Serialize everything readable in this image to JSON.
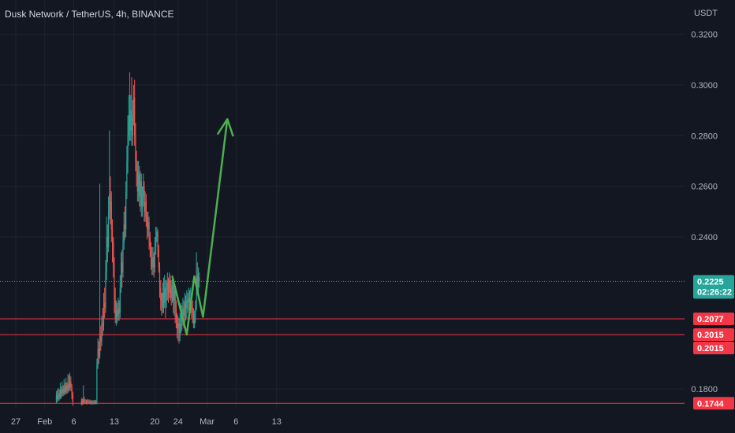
{
  "title": "Dusk Network / TetherUS, 4h, BINANCE",
  "chart_data": {
    "type": "candlestick",
    "y_unit": "USDT",
    "ylim": [
      0.172,
      0.3335
    ],
    "ytick_labels": [
      "0.3200",
      "0.3000",
      "0.2800",
      "0.2600",
      "0.2400",
      "0.1800"
    ],
    "ytick_values": [
      0.32,
      0.3,
      0.28,
      0.26,
      0.24,
      0.18
    ],
    "xtick_labels": [
      "27",
      "Feb",
      "6",
      "13",
      "20",
      "24",
      "Mar",
      "6",
      "13"
    ],
    "xtick_dates": [
      "2023-01-27",
      "2023-02-01",
      "2023-02-06",
      "2023-02-13",
      "2023-02-20",
      "2023-02-24",
      "2023-03-01",
      "2023-03-06",
      "2023-03-13"
    ],
    "colors": {
      "up": "#26a69a",
      "down": "#ef5350",
      "level_line": "#f23645",
      "arrow": "#4caf50",
      "current_price": "#26a69a"
    },
    "current_price": {
      "value": 0.2225,
      "label": "0.2225",
      "countdown": "02:26:22"
    },
    "horizontal_levels": [
      {
        "value": 0.2077,
        "label": "0.2077"
      },
      {
        "value": 0.2015,
        "label": "0.2015"
      },
      {
        "value": 0.1744,
        "label": "0.1744"
      }
    ],
    "extra_price_labels": [
      {
        "value": 0.2015,
        "label": "0.2015"
      }
    ],
    "projection_path": [
      {
        "date": "2023-02-23",
        "price": 0.2245
      },
      {
        "date": "2023-02-25.5",
        "price": 0.2015
      },
      {
        "date": "2023-02-26.8",
        "price": 0.2245
      },
      {
        "date": "2023-02-28.3",
        "price": 0.2085
      },
      {
        "date": "2023-03-04.5",
        "price": 0.2865
      }
    ],
    "candles": [
      [
        "2023-02-03",
        0.1755,
        0.1775,
        0.1792,
        0.1744
      ],
      [
        "2023-02-03.17",
        0.1775,
        0.176,
        0.1798,
        0.1748
      ],
      [
        "2023-02-03.33",
        0.176,
        0.1782,
        0.1805,
        0.1752
      ],
      [
        "2023-02-03.5",
        0.1782,
        0.1768,
        0.18,
        0.1755
      ],
      [
        "2023-02-03.67",
        0.1768,
        0.1795,
        0.1825,
        0.176
      ],
      [
        "2023-02-03.83",
        0.1795,
        0.178,
        0.181,
        0.1762
      ],
      [
        "2023-02-04",
        0.178,
        0.18,
        0.183,
        0.177
      ],
      [
        "2023-02-04.17",
        0.18,
        0.1785,
        0.1815,
        0.1772
      ],
      [
        "2023-02-04.33",
        0.1785,
        0.181,
        0.184,
        0.1775
      ],
      [
        "2023-02-04.5",
        0.181,
        0.179,
        0.1825,
        0.1778
      ],
      [
        "2023-02-04.67",
        0.179,
        0.1815,
        0.1845,
        0.1782
      ],
      [
        "2023-02-04.83",
        0.1815,
        0.1795,
        0.1828,
        0.178
      ],
      [
        "2023-02-05",
        0.1795,
        0.182,
        0.186,
        0.1785
      ],
      [
        "2023-02-05.17",
        0.182,
        0.1805,
        0.1855,
        0.179
      ],
      [
        "2023-02-05.33",
        0.1805,
        0.183,
        0.1865,
        0.1795
      ],
      [
        "2023-02-05.5",
        0.183,
        0.181,
        0.185,
        0.1792
      ],
      [
        "2023-02-05.67",
        0.181,
        0.178,
        0.182,
        0.176
      ],
      [
        "2023-02-05.83",
        0.178,
        0.175,
        0.179,
        0.1735
      ],
      [
        "2023-02-07.33",
        0.174,
        0.1755,
        0.1765,
        0.1735
      ],
      [
        "2023-02-07.5",
        0.1755,
        0.1745,
        0.1762,
        0.1738
      ],
      [
        "2023-02-07.67",
        0.1745,
        0.176,
        0.1815,
        0.174
      ],
      [
        "2023-02-07.83",
        0.176,
        0.1748,
        0.177,
        0.174
      ],
      [
        "2023-02-08",
        0.1748,
        0.175,
        0.176,
        0.1742
      ],
      [
        "2023-02-08.17",
        0.175,
        0.1745,
        0.1758,
        0.174
      ],
      [
        "2023-02-08.33",
        0.1745,
        0.175,
        0.1762,
        0.174
      ],
      [
        "2023-02-08.5",
        0.175,
        0.1746,
        0.1758,
        0.1741
      ],
      [
        "2023-02-08.67",
        0.1746,
        0.1749,
        0.176,
        0.1741
      ],
      [
        "2023-02-08.83",
        0.1749,
        0.1745,
        0.1756,
        0.174
      ],
      [
        "2023-02-09",
        0.1745,
        0.1748,
        0.1758,
        0.174
      ],
      [
        "2023-02-09.17",
        0.1748,
        0.1744,
        0.1755,
        0.1739
      ],
      [
        "2023-02-09.33",
        0.1744,
        0.1747,
        0.1757,
        0.174
      ],
      [
        "2023-02-09.5",
        0.1747,
        0.1745,
        0.1756,
        0.174
      ],
      [
        "2023-02-09.67",
        0.1745,
        0.1748,
        0.1758,
        0.174
      ],
      [
        "2023-02-09.83",
        0.1748,
        0.1746,
        0.1756,
        0.1741
      ],
      [
        "2023-02-10",
        0.1746,
        0.19,
        0.192,
        0.174
      ],
      [
        "2023-02-10.17",
        0.19,
        0.196,
        0.2,
        0.188
      ],
      [
        "2023-02-10.33",
        0.196,
        0.193,
        0.199,
        0.19
      ],
      [
        "2023-02-10.5",
        0.193,
        0.201,
        0.261,
        0.192
      ],
      [
        "2023-02-10.67",
        0.201,
        0.199,
        0.205,
        0.195
      ],
      [
        "2023-02-10.83",
        0.199,
        0.206,
        0.209,
        0.197
      ],
      [
        "2023-02-11",
        0.206,
        0.205,
        0.212,
        0.201
      ],
      [
        "2023-02-11.17",
        0.205,
        0.214,
        0.218,
        0.203
      ],
      [
        "2023-02-11.33",
        0.214,
        0.212,
        0.22,
        0.208
      ],
      [
        "2023-02-11.5",
        0.212,
        0.226,
        0.231,
        0.21
      ],
      [
        "2023-02-11.67",
        0.226,
        0.24,
        0.248,
        0.223
      ],
      [
        "2023-02-11.83",
        0.24,
        0.236,
        0.245,
        0.23
      ],
      [
        "2023-02-12",
        0.236,
        0.25,
        0.256,
        0.234
      ],
      [
        "2023-02-12.17",
        0.25,
        0.257,
        0.282,
        0.247
      ],
      [
        "2023-02-12.33",
        0.257,
        0.254,
        0.264,
        0.245
      ],
      [
        "2023-02-12.5",
        0.254,
        0.243,
        0.258,
        0.238
      ],
      [
        "2023-02-12.67",
        0.243,
        0.238,
        0.247,
        0.23
      ],
      [
        "2023-02-12.83",
        0.238,
        0.228,
        0.24,
        0.224
      ],
      [
        "2023-02-13",
        0.228,
        0.215,
        0.232,
        0.21
      ],
      [
        "2023-02-13.17",
        0.215,
        0.208,
        0.22,
        0.206
      ],
      [
        "2023-02-13.33",
        0.208,
        0.211,
        0.215,
        0.205
      ],
      [
        "2023-02-13.5",
        0.211,
        0.209,
        0.214,
        0.206
      ],
      [
        "2023-02-13.67",
        0.209,
        0.212,
        0.216,
        0.207
      ],
      [
        "2023-02-13.83",
        0.212,
        0.21,
        0.215,
        0.207
      ],
      [
        "2023-02-14",
        0.21,
        0.22,
        0.225,
        0.208
      ],
      [
        "2023-02-14.17",
        0.22,
        0.23,
        0.234,
        0.218
      ],
      [
        "2023-02-14.33",
        0.23,
        0.226,
        0.235,
        0.22
      ],
      [
        "2023-02-14.5",
        0.226,
        0.238,
        0.242,
        0.224
      ],
      [
        "2023-02-14.67",
        0.238,
        0.245,
        0.25,
        0.235
      ],
      [
        "2023-02-14.83",
        0.245,
        0.243,
        0.252,
        0.239
      ],
      [
        "2023-02-15",
        0.243,
        0.258,
        0.262,
        0.24
      ],
      [
        "2023-02-15.17",
        0.258,
        0.27,
        0.276,
        0.255
      ],
      [
        "2023-02-15.33",
        0.27,
        0.28,
        0.288,
        0.265
      ],
      [
        "2023-02-15.5",
        0.28,
        0.288,
        0.296,
        0.276
      ],
      [
        "2023-02-15.67",
        0.288,
        0.282,
        0.305,
        0.278
      ],
      [
        "2023-02-15.83",
        0.282,
        0.29,
        0.296,
        0.278
      ],
      [
        "2023-02-16",
        0.29,
        0.28,
        0.303,
        0.276
      ],
      [
        "2023-02-16.17",
        0.28,
        0.288,
        0.294,
        0.276
      ],
      [
        "2023-02-16.33",
        0.288,
        0.295,
        0.3,
        0.284
      ],
      [
        "2023-02-16.5",
        0.295,
        0.28,
        0.302,
        0.276
      ],
      [
        "2023-02-16.67",
        0.28,
        0.27,
        0.285,
        0.266
      ],
      [
        "2023-02-16.83",
        0.27,
        0.266,
        0.274,
        0.26
      ],
      [
        "2023-02-17",
        0.266,
        0.258,
        0.27,
        0.254
      ],
      [
        "2023-02-17.17",
        0.258,
        0.265,
        0.27,
        0.254
      ],
      [
        "2023-02-17.33",
        0.265,
        0.256,
        0.268,
        0.252
      ],
      [
        "2023-02-17.5",
        0.256,
        0.262,
        0.266,
        0.25
      ],
      [
        "2023-02-17.67",
        0.262,
        0.252,
        0.265,
        0.248
      ],
      [
        "2023-02-17.83",
        0.252,
        0.256,
        0.26,
        0.248
      ],
      [
        "2023-02-18",
        0.256,
        0.26,
        0.265,
        0.252
      ],
      [
        "2023-02-18.17",
        0.26,
        0.25,
        0.262,
        0.246
      ],
      [
        "2023-02-18.33",
        0.25,
        0.254,
        0.258,
        0.246
      ],
      [
        "2023-02-18.5",
        0.254,
        0.248,
        0.257,
        0.244
      ],
      [
        "2023-02-18.67",
        0.248,
        0.243,
        0.25,
        0.239
      ],
      [
        "2023-02-18.83",
        0.243,
        0.246,
        0.25,
        0.24
      ],
      [
        "2023-02-19",
        0.246,
        0.24,
        0.248,
        0.235
      ],
      [
        "2023-02-19.17",
        0.24,
        0.236,
        0.242,
        0.232
      ],
      [
        "2023-02-19.33",
        0.236,
        0.232,
        0.238,
        0.227
      ],
      [
        "2023-02-19.5",
        0.232,
        0.228,
        0.236,
        0.225
      ],
      [
        "2023-02-19.67",
        0.228,
        0.232,
        0.236,
        0.225
      ],
      [
        "2023-02-19.83",
        0.232,
        0.228,
        0.234,
        0.224
      ],
      [
        "2023-02-20",
        0.228,
        0.236,
        0.24,
        0.226
      ],
      [
        "2023-02-20.17",
        0.236,
        0.24,
        0.244,
        0.233
      ],
      [
        "2023-02-20.33",
        0.24,
        0.242,
        0.244,
        0.238
      ],
      [
        "2023-02-20.5",
        0.242,
        0.235,
        0.243,
        0.232
      ],
      [
        "2023-02-20.67",
        0.235,
        0.228,
        0.237,
        0.226
      ],
      [
        "2023-02-20.83",
        0.228,
        0.22,
        0.23,
        0.216
      ],
      [
        "2023-02-21",
        0.22,
        0.215,
        0.223,
        0.211
      ],
      [
        "2023-02-21.17",
        0.215,
        0.212,
        0.218,
        0.209
      ],
      [
        "2023-02-21.33",
        0.212,
        0.218,
        0.222,
        0.21
      ],
      [
        "2023-02-21.5",
        0.218,
        0.214,
        0.224,
        0.21
      ],
      [
        "2023-02-21.67",
        0.214,
        0.22,
        0.225,
        0.212
      ],
      [
        "2023-02-21.83",
        0.22,
        0.215,
        0.223,
        0.208
      ],
      [
        "2023-02-22",
        0.215,
        0.219,
        0.223,
        0.212
      ],
      [
        "2023-02-22.17",
        0.219,
        0.222,
        0.226,
        0.215
      ],
      [
        "2023-02-22.33",
        0.222,
        0.218,
        0.224,
        0.214
      ],
      [
        "2023-02-22.5",
        0.218,
        0.223,
        0.226,
        0.216
      ],
      [
        "2023-02-22.67",
        0.223,
        0.22,
        0.225,
        0.215
      ],
      [
        "2023-02-22.83",
        0.22,
        0.216,
        0.223,
        0.213
      ],
      [
        "2023-02-23",
        0.216,
        0.221,
        0.225,
        0.214
      ],
      [
        "2023-02-23.17",
        0.221,
        0.215,
        0.223,
        0.21
      ],
      [
        "2023-02-23.33",
        0.215,
        0.219,
        0.222,
        0.209
      ],
      [
        "2023-02-23.5",
        0.219,
        0.212,
        0.22,
        0.206
      ],
      [
        "2023-02-23.67",
        0.212,
        0.208,
        0.215,
        0.204
      ],
      [
        "2023-02-23.83",
        0.208,
        0.204,
        0.21,
        0.2
      ],
      [
        "2023-02-24",
        0.204,
        0.206,
        0.209,
        0.199
      ],
      [
        "2023-02-24.17",
        0.206,
        0.202,
        0.208,
        0.198
      ],
      [
        "2023-02-24.33",
        0.202,
        0.206,
        0.21,
        0.199
      ],
      [
        "2023-02-24.5",
        0.206,
        0.21,
        0.214,
        0.202
      ],
      [
        "2023-02-24.67",
        0.21,
        0.207,
        0.213,
        0.203
      ],
      [
        "2023-02-24.83",
        0.207,
        0.212,
        0.216,
        0.205
      ],
      [
        "2023-02-25",
        0.212,
        0.209,
        0.215,
        0.204
      ],
      [
        "2023-02-25.17",
        0.209,
        0.214,
        0.218,
        0.206
      ],
      [
        "2023-02-25.33",
        0.214,
        0.212,
        0.217,
        0.207
      ],
      [
        "2023-02-25.5",
        0.212,
        0.215,
        0.219,
        0.208
      ],
      [
        "2023-02-25.67",
        0.215,
        0.214,
        0.218,
        0.21
      ],
      [
        "2023-02-25.83",
        0.214,
        0.216,
        0.22,
        0.211
      ],
      [
        "2023-02-26",
        0.216,
        0.213,
        0.219,
        0.209
      ],
      [
        "2023-02-26.17",
        0.213,
        0.216,
        0.22,
        0.21
      ],
      [
        "2023-02-26.33",
        0.216,
        0.212,
        0.218,
        0.208
      ],
      [
        "2023-02-26.5",
        0.212,
        0.21,
        0.215,
        0.206
      ],
      [
        "2023-02-26.67",
        0.21,
        0.206,
        0.212,
        0.204
      ],
      [
        "2023-02-26.83",
        0.206,
        0.208,
        0.211,
        0.204
      ],
      [
        "2023-02-27",
        0.208,
        0.212,
        0.215,
        0.206
      ],
      [
        "2023-02-27.17",
        0.212,
        0.225,
        0.234,
        0.211
      ],
      [
        "2023-02-27.33",
        0.225,
        0.22,
        0.23,
        0.217
      ],
      [
        "2023-02-27.5",
        0.22,
        0.224,
        0.228,
        0.217
      ],
      [
        "2023-02-27.67",
        0.224,
        0.2225,
        0.226,
        0.22
      ]
    ]
  }
}
